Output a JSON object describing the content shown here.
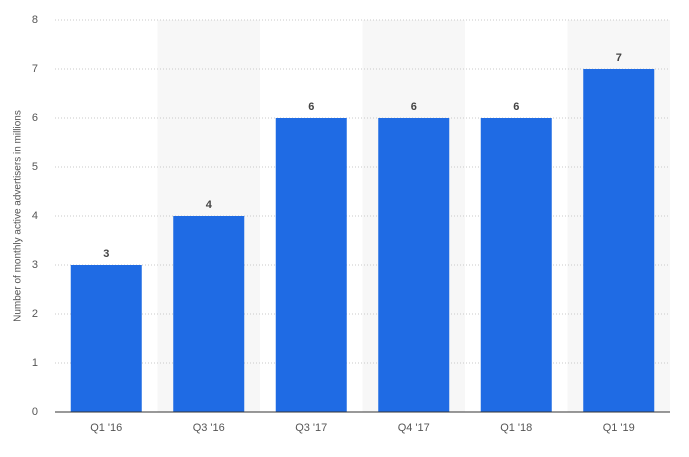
{
  "chart_data": {
    "type": "bar",
    "y_label": "Number of monthly active advertisers in millions",
    "categories": [
      "Q1 '16",
      "Q3 '16",
      "Q3 '17",
      "Q4 '17",
      "Q1 '18",
      "Q1 '19"
    ],
    "values": [
      3,
      4,
      6,
      6,
      6,
      7
    ],
    "color": "#1f6be4",
    "ylim": [
      0,
      8
    ],
    "yticks": [
      0,
      1,
      2,
      3,
      4,
      5,
      6,
      7,
      8
    ],
    "grid": true
  }
}
